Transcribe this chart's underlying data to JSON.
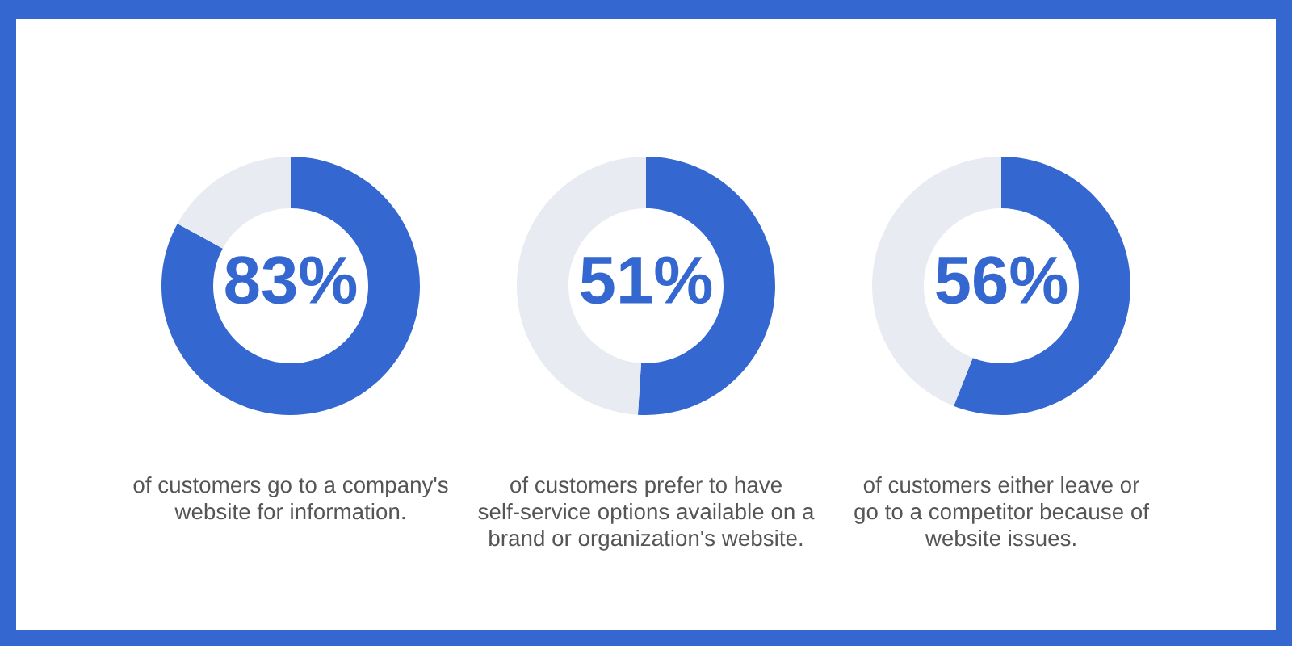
{
  "chart_data": [
    {
      "type": "donut",
      "categories": [
        null,
        null
      ],
      "values": [
        83,
        17
      ],
      "colors": [
        "#3468d0",
        "#e9ebf2"
      ],
      "value_labels": [
        "83%",
        null
      ],
      "annotations": [
        "of customers go to a company's\nwebsite for information."
      ]
    },
    {
      "type": "donut",
      "categories": [
        null,
        null
      ],
      "values": [
        51,
        49
      ],
      "colors": [
        "#3468d0",
        "#e9ebf2"
      ],
      "value_labels": [
        "51%",
        null
      ],
      "annotations": [
        "of customers prefer to have\nself-service options available on a\nbrand or organization's website."
      ]
    },
    {
      "type": "donut",
      "categories": [
        null,
        null
      ],
      "values": [
        56,
        44
      ],
      "colors": [
        "#3468d0",
        "#e9ebf2"
      ],
      "value_labels": [
        "56%",
        null
      ],
      "annotations": [
        "of customers either leave or\ngo to a competitor because of\nwebsite issues."
      ]
    }
  ]
}
